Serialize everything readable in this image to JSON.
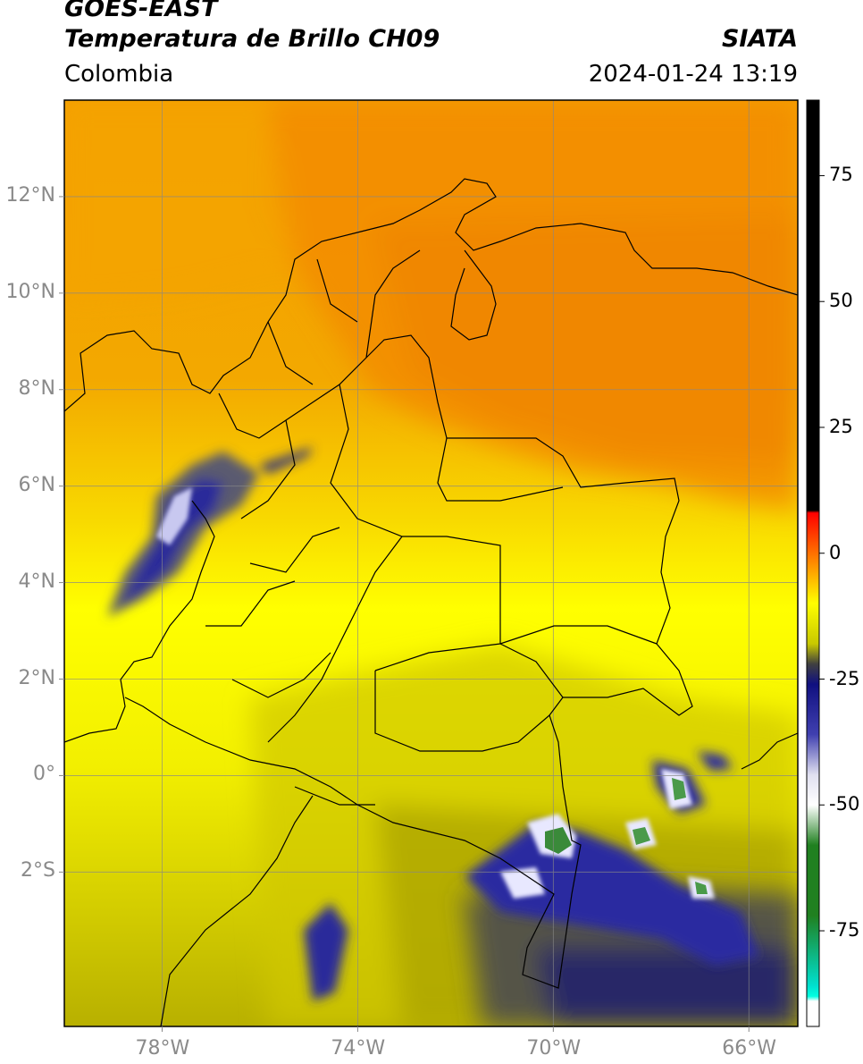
{
  "header": {
    "satellite": "GOES-EAST",
    "product": "Temperatura de Brillo CH09",
    "brand": "SIATA",
    "region": "Colombia",
    "timestamp": "2024-01-24 13:19"
  },
  "map": {
    "lon_range": [
      -80,
      -65
    ],
    "lat_range": [
      -5.2,
      14
    ],
    "lat_ticks": [
      {
        "value": 12,
        "label": "12°N"
      },
      {
        "value": 10,
        "label": "10°N"
      },
      {
        "value": 8,
        "label": "8°N"
      },
      {
        "value": 6,
        "label": "6°N"
      },
      {
        "value": 4,
        "label": "4°N"
      },
      {
        "value": 2,
        "label": "2°N"
      },
      {
        "value": 0,
        "label": "0°"
      },
      {
        "value": -2,
        "label": "2°S"
      }
    ],
    "lon_ticks": [
      {
        "value": -78,
        "label": "78°W"
      },
      {
        "value": -74,
        "label": "74°W"
      },
      {
        "value": -70,
        "label": "70°W"
      },
      {
        "value": -66,
        "label": "66°W"
      }
    ],
    "field_colors": {
      "warm": "#f5a800",
      "hot": "#f08a00",
      "mid": "#ffff00",
      "cool": "#c9c400",
      "dark": "#3a3a4a",
      "deep": "#1a1a70",
      "cold": "#2a2a9a",
      "ice": "#f0f0ff",
      "green": "#3a8a3a"
    }
  },
  "colorbar": {
    "ticks": [
      {
        "value": 75,
        "label": "75"
      },
      {
        "value": 50,
        "label": "50"
      },
      {
        "value": 25,
        "label": "25"
      },
      {
        "value": 0,
        "label": "0"
      },
      {
        "value": -25,
        "label": "-25"
      },
      {
        "value": -50,
        "label": "-50"
      },
      {
        "value": -75,
        "label": "-75"
      }
    ],
    "stops": [
      {
        "value": 90,
        "color": "#000000"
      },
      {
        "value": 8.5,
        "color": "#000000"
      },
      {
        "value": 8,
        "color": "#ff0000"
      },
      {
        "value": 0,
        "color": "#ff7000"
      },
      {
        "value": -10,
        "color": "#ffff00"
      },
      {
        "value": -18,
        "color": "#c8c800"
      },
      {
        "value": -22,
        "color": "#404040"
      },
      {
        "value": -26,
        "color": "#101080"
      },
      {
        "value": -36,
        "color": "#4040b0"
      },
      {
        "value": -44,
        "color": "#e0e0f0"
      },
      {
        "value": -50,
        "color": "#ffffff"
      },
      {
        "value": -58,
        "color": "#208020"
      },
      {
        "value": -72,
        "color": "#208020"
      },
      {
        "value": -86,
        "color": "#00e0d0"
      },
      {
        "value": -88,
        "color": "#00ffe0"
      },
      {
        "value": -89,
        "color": "#ffffff"
      },
      {
        "value": -94,
        "color": "#ffffff"
      }
    ]
  }
}
